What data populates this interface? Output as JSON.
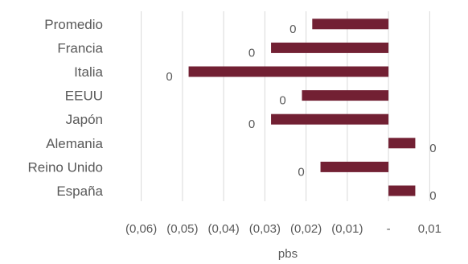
{
  "chart_data": {
    "type": "bar",
    "orientation": "horizontal",
    "categories": [
      "Promedio",
      "Francia",
      "Italia",
      "EEUU",
      "Japón",
      "Alemania",
      "Reino Unido",
      "España"
    ],
    "series": [
      {
        "values": [
          -0.0185,
          -0.0285,
          -0.0485,
          -0.021,
          -0.0285,
          0.0065,
          -0.0165,
          0.0065
        ],
        "data_labels": [
          "0",
          "0",
          "0",
          "0",
          "0",
          "0",
          "0",
          "0"
        ]
      }
    ],
    "xlim": [
      -0.065,
      0.015
    ],
    "x_ticks": [
      -0.06,
      -0.05,
      -0.04,
      -0.03,
      -0.02,
      -0.01,
      0,
      0.01
    ],
    "x_tick_labels": [
      "(0,06)",
      "(0,05)",
      "(0,04)",
      "(0,03)",
      "(0,02)",
      "(0,01)",
      "-",
      "0,01"
    ],
    "xlabel": "pbs",
    "ylabel": "",
    "title": "",
    "grid": true,
    "legend": "none",
    "colors": {
      "bar": "#722033",
      "grid": "#d9d9d9",
      "text": "#595959"
    }
  }
}
